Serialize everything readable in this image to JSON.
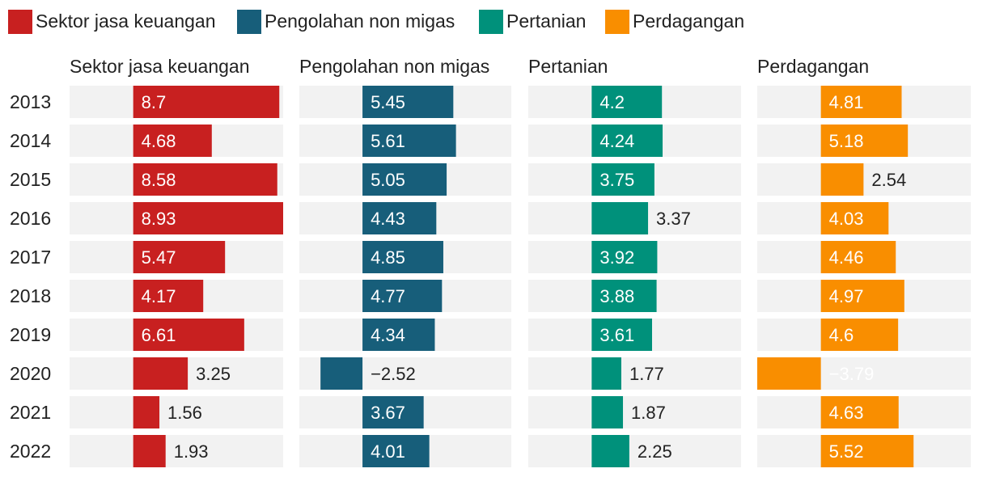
{
  "chart_data": {
    "type": "bar",
    "orientation": "horizontal",
    "layout": "small-multiples",
    "legend": {
      "position": "top-left"
    },
    "categories": [
      "2013",
      "2014",
      "2015",
      "2016",
      "2017",
      "2018",
      "2019",
      "2020",
      "2021",
      "2022"
    ],
    "series": [
      {
        "name": "Sektor jasa keuangan",
        "color": "#c82020",
        "domain": [
          -3.79,
          8.93
        ],
        "values": [
          8.7,
          4.68,
          8.58,
          8.93,
          5.47,
          4.17,
          6.61,
          3.25,
          1.56,
          1.93
        ]
      },
      {
        "name": "Pengolahan non migas",
        "color": "#175e7a",
        "domain": [
          -3.79,
          8.93
        ],
        "values": [
          5.45,
          5.61,
          5.05,
          4.43,
          4.85,
          4.77,
          4.34,
          -2.52,
          3.67,
          4.01
        ]
      },
      {
        "name": "Pertanian",
        "color": "#00917b",
        "domain": [
          -3.79,
          8.93
        ],
        "values": [
          4.2,
          4.24,
          3.75,
          3.37,
          3.92,
          3.88,
          3.61,
          1.77,
          1.87,
          2.25
        ]
      },
      {
        "name": "Perdagangan",
        "color": "#f98e00",
        "domain": [
          -3.79,
          8.93
        ],
        "values": [
          4.81,
          5.18,
          2.54,
          4.03,
          4.46,
          4.97,
          4.6,
          -3.79,
          4.63,
          5.52
        ]
      }
    ],
    "value_labels": [
      [
        "8.7",
        "4.68",
        "8.58",
        "8.93",
        "5.47",
        "4.17",
        "6.61",
        "3.25",
        "1.56",
        "1.93"
      ],
      [
        "5.45",
        "5.61",
        "5.05",
        "4.43",
        "4.85",
        "4.77",
        "4.34",
        "−2.52",
        "3.67",
        "4.01"
      ],
      [
        "4.2",
        "4.24",
        "3.75",
        "3.37",
        "3.92",
        "3.88",
        "3.61",
        "1.77",
        "1.87",
        "2.25"
      ],
      [
        "4.81",
        "5.18",
        "2.54",
        "4.03",
        "4.46",
        "4.97",
        "4.6",
        "−3.79",
        "4.63",
        "5.52"
      ]
    ],
    "background_color": "#f2f2f2"
  }
}
